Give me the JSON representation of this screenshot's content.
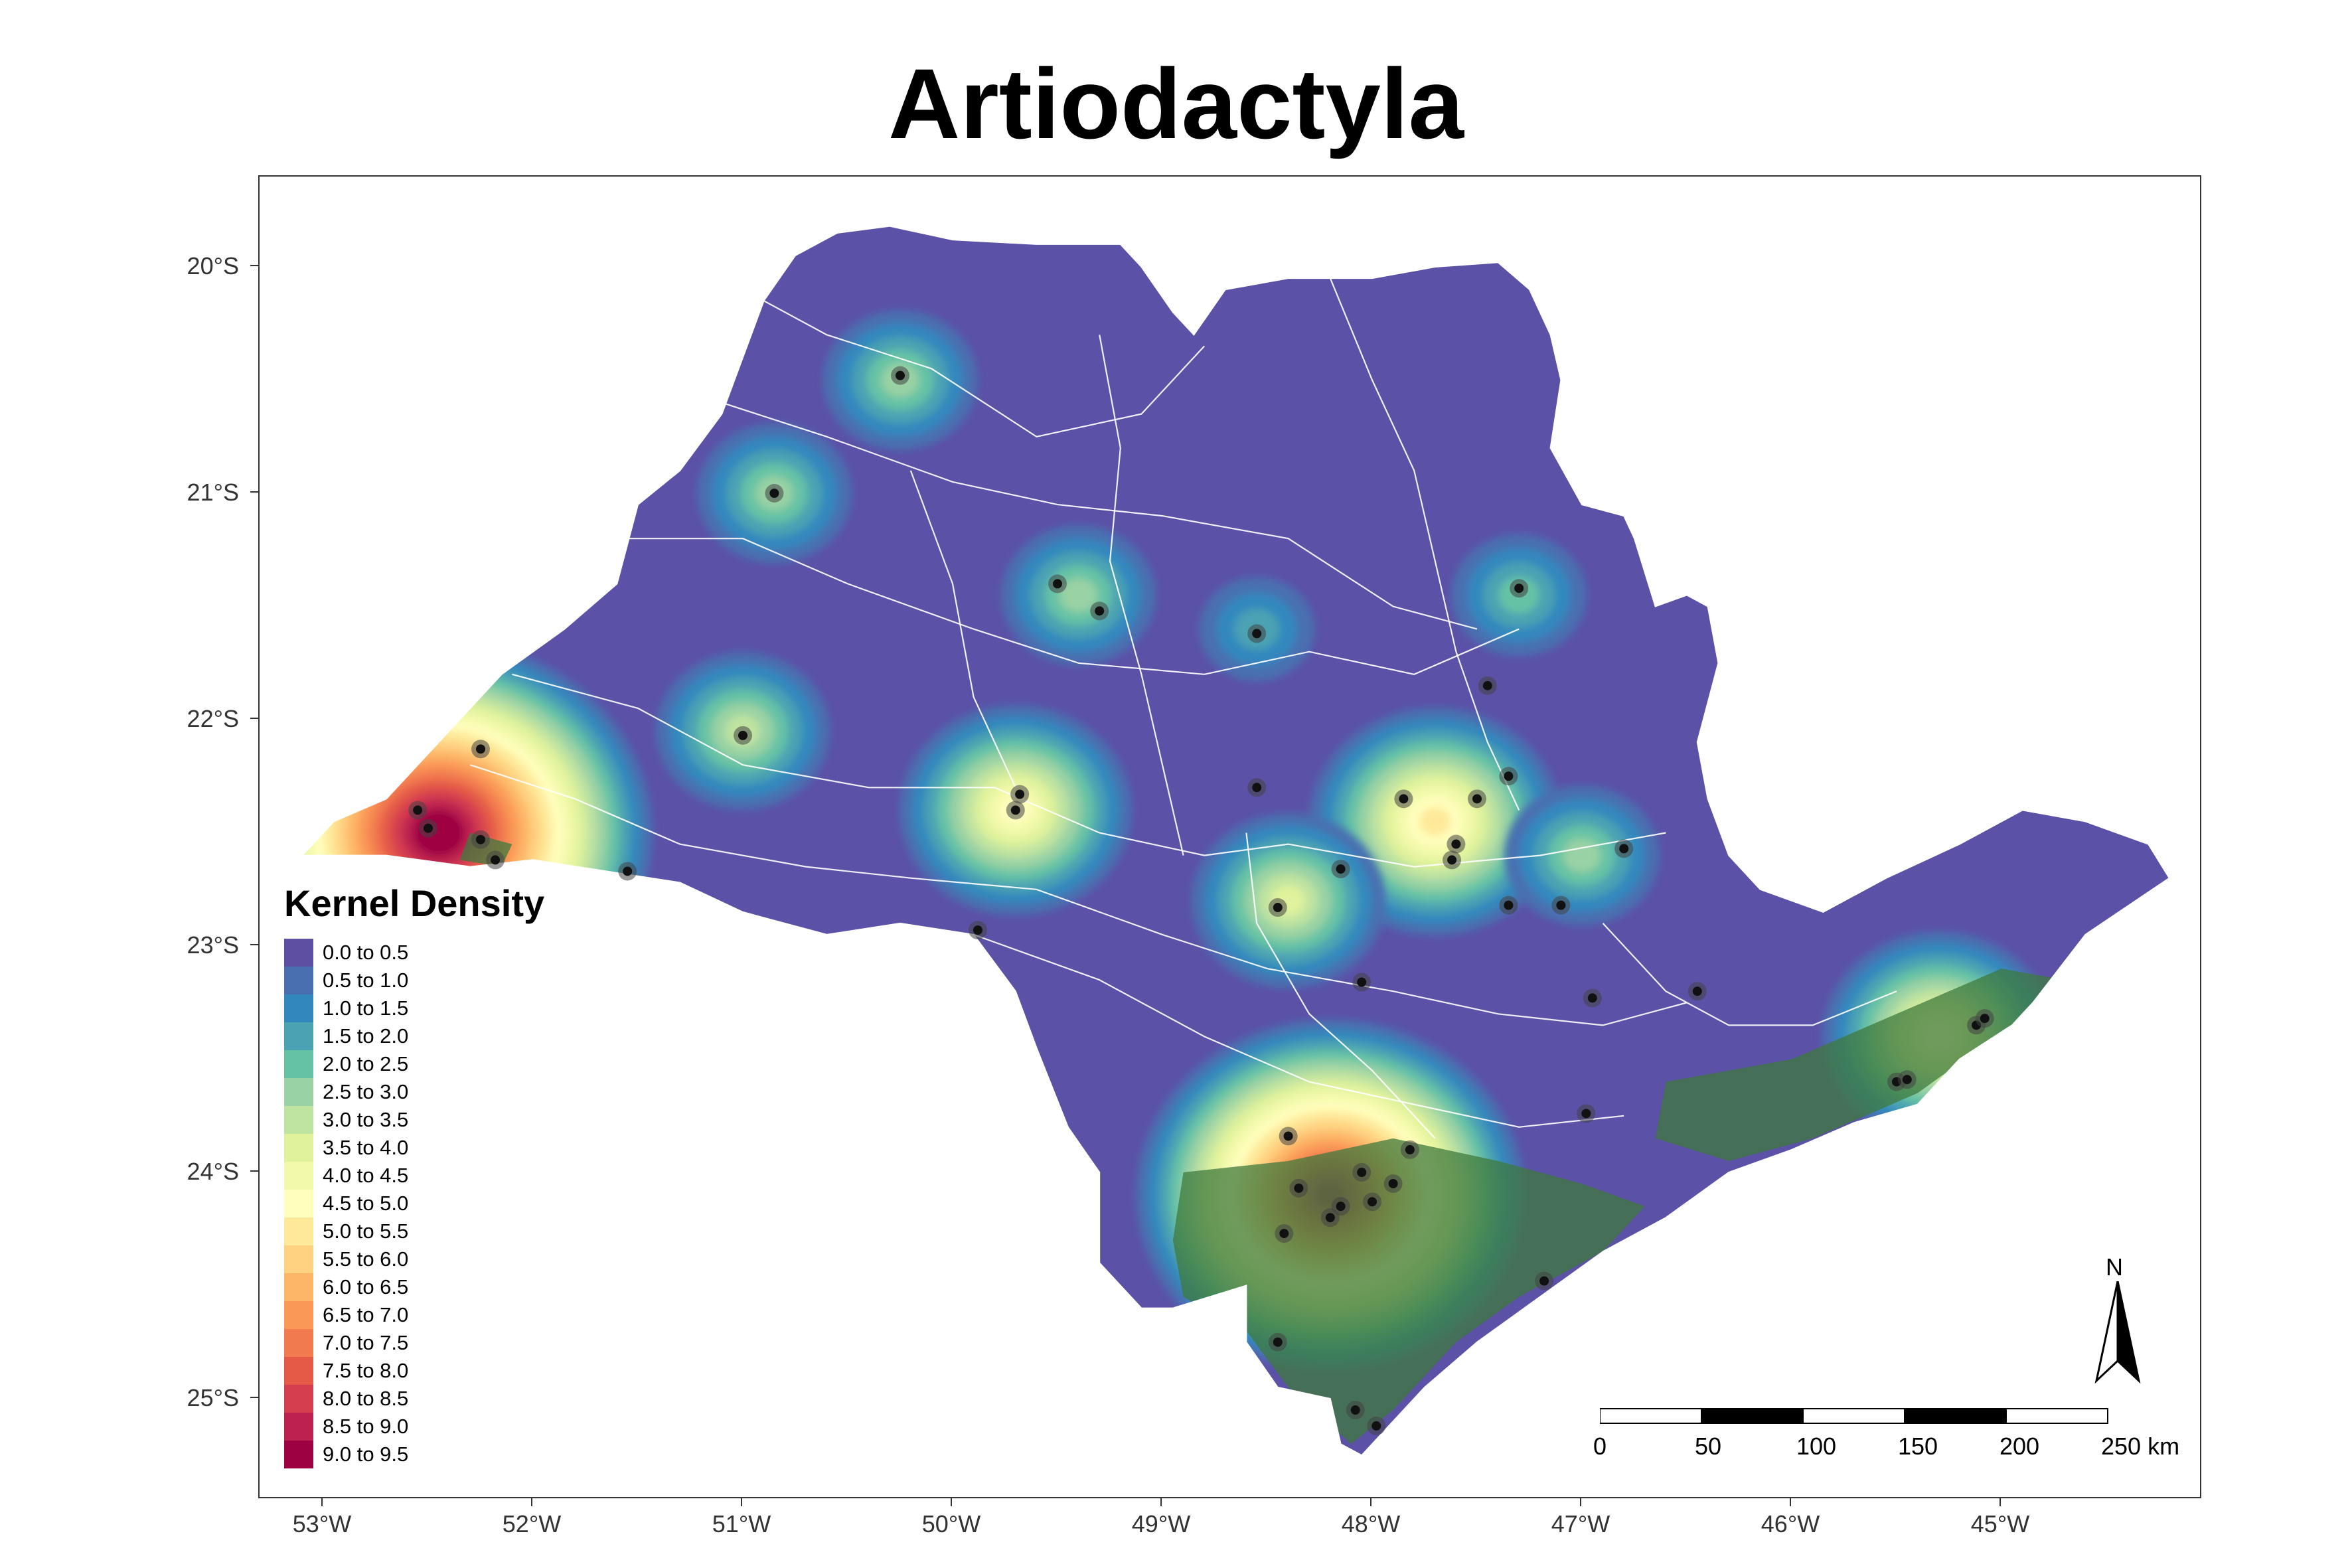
{
  "title": "Artiodactyla",
  "colors": {
    "state_base": "#5b51a6",
    "forest": "#3f7a3d",
    "forest_light": "#7ab67d",
    "border": "#ffffff",
    "point": "#111111"
  },
  "y_ticks": [
    "20°S",
    "21°S",
    "22°S",
    "23°S",
    "24°S",
    "25°S"
  ],
  "x_ticks": [
    "53°W",
    "52°W",
    "51°W",
    "50°W",
    "49°W",
    "48°W",
    "47°W",
    "46°W",
    "45°W"
  ],
  "legend": {
    "title": "Kernel Density",
    "items": [
      {
        "label": "0.0 to 0.5",
        "color": "#5e4fa2"
      },
      {
        "label": "0.5 to 1.0",
        "color": "#4a6fb1"
      },
      {
        "label": "1.0 to 1.5",
        "color": "#3288bd"
      },
      {
        "label": "1.5 to 2.0",
        "color": "#4ba2b2"
      },
      {
        "label": "2.0 to 2.5",
        "color": "#66c2a5"
      },
      {
        "label": "2.5 to 3.0",
        "color": "#99d2a4"
      },
      {
        "label": "3.0 to 3.5",
        "color": "#bfe3a0"
      },
      {
        "label": "3.5 to 4.0",
        "color": "#e0f29b"
      },
      {
        "label": "4.0 to 4.5",
        "color": "#f2f9aa"
      },
      {
        "label": "4.5 to 5.0",
        "color": "#fffebd"
      },
      {
        "label": "5.0 to 5.5",
        "color": "#fee99a"
      },
      {
        "label": "5.5 to 6.0",
        "color": "#fed281"
      },
      {
        "label": "6.0 to 6.5",
        "color": "#fdb668"
      },
      {
        "label": "6.5 to 7.0",
        "color": "#fa9856"
      },
      {
        "label": "7.0 to 7.5",
        "color": "#f27a4f"
      },
      {
        "label": "7.5 to 8.0",
        "color": "#e45a47"
      },
      {
        "label": "8.0 to 8.5",
        "color": "#d53e4f"
      },
      {
        "label": "8.5 to 9.0",
        "color": "#bd2150"
      },
      {
        "label": "9.0 to 9.5",
        "color": "#9e0142"
      }
    ]
  },
  "scale_bar": {
    "labels": [
      "0",
      "50",
      "100",
      "150",
      "200",
      "250 km"
    ]
  },
  "north_label": "N",
  "hotspots": [
    {
      "lon": -52.45,
      "lat": -22.5,
      "level": 18
    },
    {
      "lon": -48.2,
      "lat": -24.1,
      "level": 16
    },
    {
      "lon": -47.7,
      "lat": -22.45,
      "level": 9
    },
    {
      "lon": -49.7,
      "lat": -22.4,
      "level": 8
    },
    {
      "lon": -45.3,
      "lat": -23.4,
      "level": 8
    },
    {
      "lon": -48.4,
      "lat": -22.8,
      "level": 6
    },
    {
      "lon": -50.25,
      "lat": -20.5,
      "level": 4
    },
    {
      "lon": -50.85,
      "lat": -21.0,
      "level": 4
    },
    {
      "lon": -49.4,
      "lat": -21.45,
      "level": 4
    },
    {
      "lon": -51.0,
      "lat": -22.05,
      "level": 5
    },
    {
      "lon": -47.3,
      "lat": -21.45,
      "level": 3
    },
    {
      "lon": -48.55,
      "lat": -21.6,
      "level": 2
    },
    {
      "lon": -47.0,
      "lat": -22.6,
      "level": 4
    }
  ],
  "occurrences": [
    {
      "lon": -50.25,
      "lat": -20.48
    },
    {
      "lon": -50.85,
      "lat": -21.0
    },
    {
      "lon": -49.5,
      "lat": -21.4
    },
    {
      "lon": -49.3,
      "lat": -21.52
    },
    {
      "lon": -48.55,
      "lat": -21.62
    },
    {
      "lon": -47.3,
      "lat": -21.42
    },
    {
      "lon": -47.45,
      "lat": -21.85
    },
    {
      "lon": -51.0,
      "lat": -22.07
    },
    {
      "lon": -52.25,
      "lat": -22.13
    },
    {
      "lon": -52.55,
      "lat": -22.4
    },
    {
      "lon": -52.5,
      "lat": -22.48
    },
    {
      "lon": -52.25,
      "lat": -22.53
    },
    {
      "lon": -52.18,
      "lat": -22.62
    },
    {
      "lon": -51.55,
      "lat": -22.67
    },
    {
      "lon": -49.68,
      "lat": -22.33
    },
    {
      "lon": -49.7,
      "lat": -22.4
    },
    {
      "lon": -48.55,
      "lat": -22.3
    },
    {
      "lon": -47.85,
      "lat": -22.35
    },
    {
      "lon": -47.5,
      "lat": -22.35
    },
    {
      "lon": -47.35,
      "lat": -22.25
    },
    {
      "lon": -47.6,
      "lat": -22.55
    },
    {
      "lon": -47.62,
      "lat": -22.62
    },
    {
      "lon": -48.15,
      "lat": -22.66
    },
    {
      "lon": -46.8,
      "lat": -22.57
    },
    {
      "lon": -48.45,
      "lat": -22.83
    },
    {
      "lon": -47.35,
      "lat": -22.82
    },
    {
      "lon": -47.1,
      "lat": -22.82
    },
    {
      "lon": -49.88,
      "lat": -22.93
    },
    {
      "lon": -48.05,
      "lat": -23.16
    },
    {
      "lon": -46.95,
      "lat": -23.23
    },
    {
      "lon": -46.45,
      "lat": -23.2
    },
    {
      "lon": -45.12,
      "lat": -23.35
    },
    {
      "lon": -45.08,
      "lat": -23.32
    },
    {
      "lon": -45.5,
      "lat": -23.6
    },
    {
      "lon": -45.45,
      "lat": -23.59
    },
    {
      "lon": -46.98,
      "lat": -23.74
    },
    {
      "lon": -48.4,
      "lat": -23.84
    },
    {
      "lon": -47.82,
      "lat": -23.9
    },
    {
      "lon": -48.35,
      "lat": -24.07
    },
    {
      "lon": -48.2,
      "lat": -24.2
    },
    {
      "lon": -48.0,
      "lat": -24.13
    },
    {
      "lon": -48.15,
      "lat": -24.15
    },
    {
      "lon": -47.9,
      "lat": -24.05
    },
    {
      "lon": -48.42,
      "lat": -24.27
    },
    {
      "lon": -48.05,
      "lat": -24.0
    },
    {
      "lon": -47.18,
      "lat": -24.48
    },
    {
      "lon": -48.45,
      "lat": -24.75
    },
    {
      "lon": -48.08,
      "lat": -25.05
    },
    {
      "lon": -47.98,
      "lat": -25.12
    }
  ]
}
